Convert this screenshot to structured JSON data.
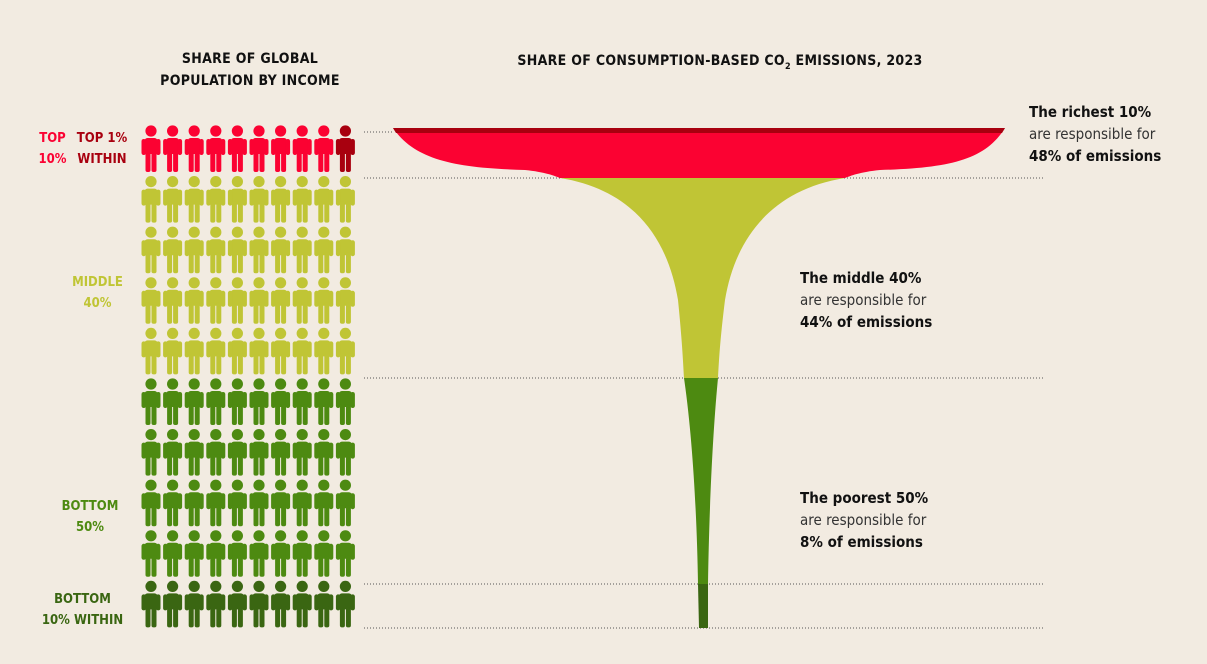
{
  "left_title": [
    "SHARE OF GLOBAL",
    "POPULATION BY INCOME"
  ],
  "right_title": {
    "before": "SHARE OF CONSUMPTION-BASED CO",
    "sub": "2",
    "after": " EMISSIONS, 2023"
  },
  "left_labels": {
    "top10": [
      "TOP",
      "10%"
    ],
    "top1": [
      "TOP 1%",
      "WITHIN"
    ],
    "middle40": [
      "MIDDLE",
      "40%"
    ],
    "bottom50": [
      "BOTTOM",
      "50%"
    ],
    "bottom10": [
      "BOTTOM",
      "10% WITHIN"
    ]
  },
  "notes": [
    {
      "line1": "The richest 10%",
      "line2": "are responsible for",
      "line3": "48% of emissions"
    },
    {
      "line1": "The middle 40%",
      "line2": "are responsible for",
      "line3": "44% of emissions"
    },
    {
      "line1": "The poorest 50%",
      "line2": "are responsible for",
      "line3": "8% of emissions"
    }
  ],
  "colors": {
    "top1": "#a8000f",
    "top10": "#fb0232",
    "middle": "#c0c535",
    "bottom": "#4d8a11",
    "bottom10": "#3a6612",
    "background": "#f2ebe1"
  },
  "chart_data": {
    "type": "funnel-pictogram",
    "title": "SHARE OF CONSUMPTION-BASED CO2 EMISSIONS, 2023",
    "pictogram_title": "SHARE OF GLOBAL POPULATION BY INCOME",
    "icons_total": 100,
    "groups": [
      {
        "name": "Top 10%",
        "population_share": 10,
        "emissions_share": 48,
        "icons": 10,
        "subgroup": {
          "name": "Top 1% within",
          "icons": 1
        }
      },
      {
        "name": "Middle 40%",
        "population_share": 40,
        "emissions_share": 44,
        "icons": 40
      },
      {
        "name": "Bottom 50%",
        "population_share": 50,
        "emissions_share": 8,
        "icons": 50,
        "subgroup": {
          "name": "Bottom 10% within",
          "icons": 10
        }
      }
    ]
  }
}
